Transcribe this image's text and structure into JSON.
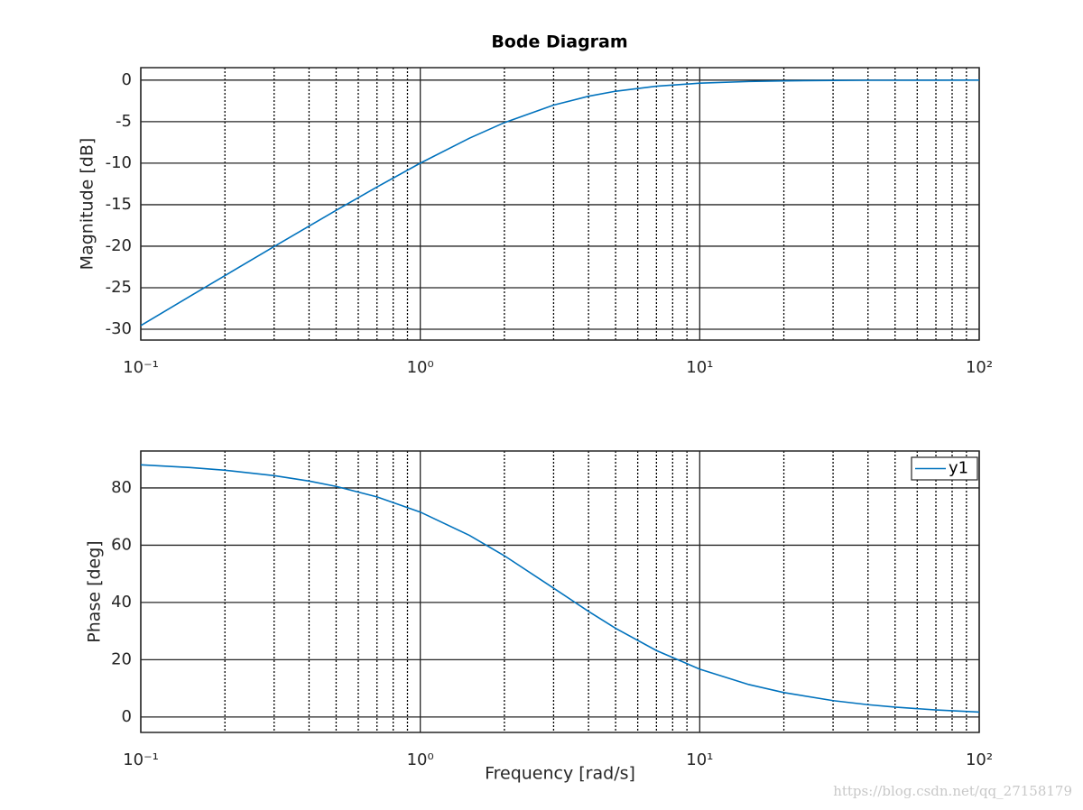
{
  "chart_data": [
    {
      "type": "line",
      "title": "Bode Diagram",
      "ylabel": "Magnitude [dB]",
      "xscale": "log",
      "grid": true,
      "x": [
        0.1,
        0.15,
        0.2,
        0.3,
        0.4,
        0.5,
        0.7,
        1,
        1.5,
        2,
        3,
        4,
        5,
        7,
        10,
        15,
        20,
        30,
        40,
        50,
        70,
        100
      ],
      "series": [
        {
          "color": "#0072bd",
          "values": [
            -29.55,
            -26.03,
            -23.54,
            -20.04,
            -17.58,
            -15.68,
            -12.87,
            -10.0,
            -6.99,
            -5.12,
            -3.01,
            -1.94,
            -1.34,
            -0.73,
            -0.37,
            -0.17,
            -0.09,
            -0.04,
            -0.02,
            -0.02,
            -0.01,
            0.0
          ]
        }
      ],
      "xlim": [
        0.1,
        100
      ],
      "ylim": [
        -31.3,
        1.5
      ],
      "xticks": [
        {
          "value": 0.1,
          "label": "10⁻¹"
        },
        {
          "value": 1,
          "label": "10⁰"
        },
        {
          "value": 10,
          "label": "10¹"
        },
        {
          "value": 100,
          "label": "10²"
        }
      ],
      "xminorticks": [
        0.2,
        0.3,
        0.4,
        0.5,
        0.6,
        0.7,
        0.8,
        0.9,
        2,
        3,
        4,
        5,
        6,
        7,
        8,
        9,
        20,
        30,
        40,
        50,
        60,
        70,
        80,
        90
      ],
      "yticks": [
        -30,
        -25,
        -20,
        -15,
        -10,
        -5,
        0
      ]
    },
    {
      "type": "line",
      "ylabel": "Phase [deg]",
      "xlabel": "Frequency [rad/s]",
      "xscale": "log",
      "grid": true,
      "legend": "upper right",
      "x": [
        0.1,
        0.15,
        0.2,
        0.3,
        0.4,
        0.5,
        0.7,
        1,
        1.5,
        2,
        3,
        4,
        5,
        7,
        10,
        15,
        20,
        30,
        40,
        50,
        70,
        100
      ],
      "series": [
        {
          "name": "y1",
          "color": "#0072bd",
          "values": [
            88.09,
            87.14,
            86.19,
            84.29,
            82.41,
            80.54,
            76.87,
            71.57,
            63.43,
            56.31,
            45.0,
            36.87,
            30.96,
            23.2,
            16.7,
            11.31,
            8.53,
            5.71,
            4.29,
            3.43,
            2.45,
            1.72
          ]
        }
      ],
      "xlim": [
        0.1,
        100
      ],
      "ylim": [
        -5.4,
        92.9
      ],
      "xticks": [
        {
          "value": 0.1,
          "label": "10⁻¹"
        },
        {
          "value": 1,
          "label": "10⁰"
        },
        {
          "value": 10,
          "label": "10¹"
        },
        {
          "value": 100,
          "label": "10²"
        }
      ],
      "xminorticks": [
        0.2,
        0.3,
        0.4,
        0.5,
        0.6,
        0.7,
        0.8,
        0.9,
        2,
        3,
        4,
        5,
        6,
        7,
        8,
        9,
        20,
        30,
        40,
        50,
        60,
        70,
        80,
        90
      ],
      "yticks": [
        0,
        20,
        40,
        60,
        80
      ]
    }
  ],
  "watermark": "https://blog.csdn.net/qq_27158179"
}
